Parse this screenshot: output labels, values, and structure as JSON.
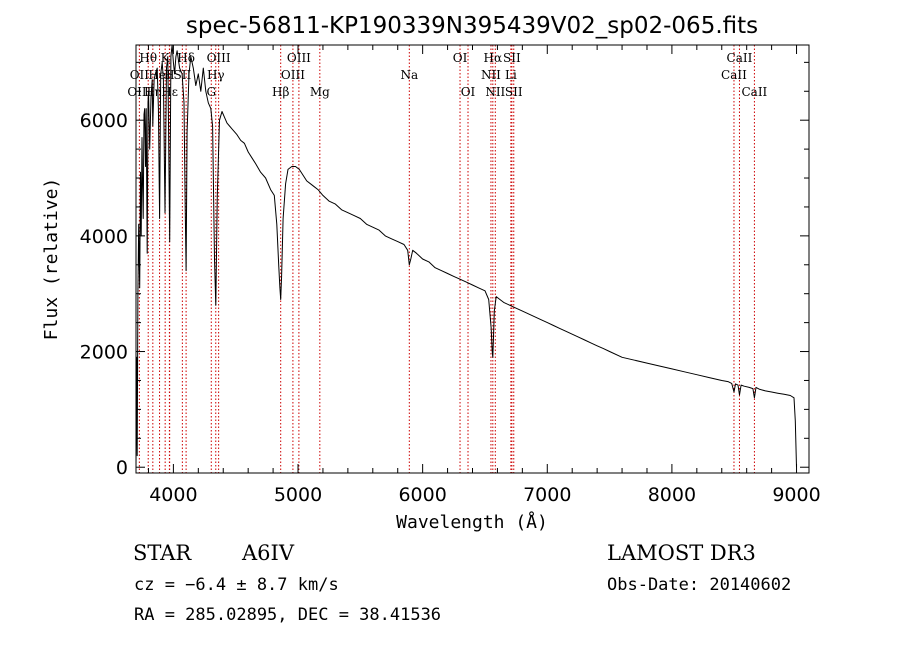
{
  "chart_data": {
    "type": "line",
    "title": "spec-56811-KP190339N395439V02_sp02-065.fits",
    "xlabel": "Wavelength (Å)",
    "ylabel": "Flux (relative)",
    "xlim": [
      3700,
      9100
    ],
    "ylim": [
      -100,
      7300
    ],
    "xticks": [
      4000,
      5000,
      6000,
      7000,
      8000,
      9000
    ],
    "xtick_labels": [
      "4000",
      "5000",
      "6000",
      "7000",
      "8000",
      "9000"
    ],
    "yticks": [
      0,
      2000,
      4000,
      6000
    ],
    "ytick_labels": [
      "0",
      "2000",
      "4000",
      "6000"
    ],
    "grid": false,
    "line_color": "#000000",
    "marker_color": "#cc0000",
    "series": [
      {
        "name": "spectrum",
        "x": [
          3700,
          3705,
          3710,
          3715,
          3722,
          3730,
          3736,
          3742,
          3748,
          3752,
          3758,
          3764,
          3770,
          3776,
          3782,
          3790,
          3796,
          3800,
          3810,
          3820,
          3830,
          3835,
          3845,
          3855,
          3870,
          3880,
          3889,
          3898,
          3910,
          3920,
          3933,
          3945,
          3955,
          3962,
          3970,
          3980,
          3990,
          4000,
          4010,
          4020,
          4030,
          4050,
          4070,
          4085,
          4095,
          4102,
          4110,
          4125,
          4140,
          4160,
          4180,
          4200,
          4220,
          4240,
          4260,
          4280,
          4300,
          4315,
          4330,
          4340,
          4352,
          4370,
          4390,
          4410,
          4430,
          4450,
          4470,
          4490,
          4510,
          4540,
          4570,
          4600,
          4630,
          4660,
          4700,
          4740,
          4780,
          4810,
          4830,
          4845,
          4855,
          4861,
          4868,
          4880,
          4900,
          4920,
          4950,
          4980,
          5010,
          5040,
          5070,
          5100,
          5130,
          5160,
          5200,
          5250,
          5300,
          5350,
          5400,
          5450,
          5500,
          5550,
          5600,
          5650,
          5700,
          5750,
          5800,
          5850,
          5880,
          5893,
          5905,
          5920,
          5950,
          6000,
          6050,
          6100,
          6150,
          6200,
          6250,
          6300,
          6350,
          6400,
          6450,
          6500,
          6530,
          6550,
          6558,
          6563,
          6568,
          6575,
          6590,
          6620,
          6650,
          6700,
          6750,
          6800,
          6850,
          6900,
          6950,
          7000,
          7050,
          7100,
          7150,
          7200,
          7250,
          7300,
          7350,
          7400,
          7450,
          7500,
          7600,
          7700,
          7800,
          7900,
          8000,
          8100,
          8200,
          8300,
          8400,
          8450,
          8480,
          8498,
          8510,
          8530,
          8542,
          8555,
          8580,
          8620,
          8650,
          8662,
          8675,
          8700,
          8750,
          8800,
          8850,
          8900,
          8950,
          8980,
          8990,
          9000
        ],
        "y": [
          0,
          1900,
          200,
          3000,
          4200,
          3100,
          5100,
          4000,
          5700,
          5000,
          4300,
          6100,
          6200,
          5200,
          6200,
          3700,
          6300,
          6500,
          5500,
          6400,
          6700,
          5900,
          6700,
          6800,
          6900,
          6200,
          4300,
          6800,
          7000,
          6700,
          4400,
          6900,
          7100,
          5600,
          3900,
          7100,
          7300,
          7000,
          6800,
          7100,
          7200,
          6900,
          6800,
          6300,
          4500,
          3400,
          5800,
          6800,
          7100,
          6900,
          6600,
          6800,
          6500,
          6900,
          6500,
          6300,
          6200,
          5900,
          3600,
          2800,
          4700,
          6000,
          6150,
          6050,
          5950,
          5900,
          5850,
          5800,
          5750,
          5650,
          5600,
          5450,
          5350,
          5250,
          5100,
          5000,
          4800,
          4700,
          4200,
          3500,
          3100,
          2900,
          3300,
          4300,
          4900,
          5150,
          5200,
          5200,
          5150,
          5050,
          4950,
          4900,
          4850,
          4800,
          4700,
          4600,
          4550,
          4450,
          4400,
          4350,
          4300,
          4200,
          4150,
          4100,
          4000,
          3950,
          3900,
          3850,
          3750,
          3500,
          3600,
          3750,
          3700,
          3600,
          3550,
          3450,
          3400,
          3350,
          3300,
          3250,
          3200,
          3150,
          3100,
          3050,
          2900,
          2400,
          2000,
          1900,
          2200,
          2700,
          2950,
          2900,
          2850,
          2800,
          2750,
          2700,
          2650,
          2600,
          2550,
          2500,
          2450,
          2400,
          2350,
          2300,
          2250,
          2200,
          2150,
          2100,
          2050,
          2000,
          1900,
          1850,
          1800,
          1750,
          1700,
          1650,
          1600,
          1550,
          1500,
          1480,
          1450,
          1300,
          1440,
          1420,
          1250,
          1420,
          1400,
          1380,
          1360,
          1200,
          1380,
          1350,
          1320,
          1300,
          1280,
          1260,
          1240,
          1200,
          800,
          0
        ]
      }
    ],
    "annotations": [
      {
        "label": "Hθ",
        "x": 3798,
        "row": 1
      },
      {
        "label": "OII",
        "x": 3727,
        "row": 2
      },
      {
        "label": "OIII",
        "x": 3727,
        "row": 3
      },
      {
        "label": "Hη",
        "x": 3835,
        "row": 3
      },
      {
        "label": "K",
        "x": 3934,
        "row": 1
      },
      {
        "label": "HeI",
        "x": 3889,
        "row": 2
      },
      {
        "label": "Hε",
        "x": 3970,
        "row": 3
      },
      {
        "label": "H",
        "x": 3968,
        "row": 2
      },
      {
        "label": "Hδ",
        "x": 4102,
        "row": 1
      },
      {
        "label": "SII",
        "x": 4072,
        "row": 2
      },
      {
        "label": "OIII",
        "x": 4363,
        "row": 1
      },
      {
        "label": "Hγ",
        "x": 4340,
        "row": 2
      },
      {
        "label": "G",
        "x": 4304,
        "row": 3
      },
      {
        "label": "OIII",
        "x": 5007,
        "row": 1
      },
      {
        "label": "OIII",
        "x": 4959,
        "row": 2
      },
      {
        "label": "Hβ",
        "x": 4861,
        "row": 3
      },
      {
        "label": "Mg",
        "x": 5175,
        "row": 3
      },
      {
        "label": "Na",
        "x": 5893,
        "row": 2
      },
      {
        "label": "OI",
        "x": 6300,
        "row": 1
      },
      {
        "label": "OI",
        "x": 6364,
        "row": 3
      },
      {
        "label": "Hα",
        "x": 6563,
        "row": 1
      },
      {
        "label": "SII",
        "x": 6716,
        "row": 1
      },
      {
        "label": "NII",
        "x": 6548,
        "row": 2
      },
      {
        "label": "Li",
        "x": 6708,
        "row": 2
      },
      {
        "label": "NII",
        "x": 6583,
        "row": 3
      },
      {
        "label": "SII",
        "x": 6731,
        "row": 3
      },
      {
        "label": "CaII",
        "x": 8542,
        "row": 1
      },
      {
        "label": "CaII",
        "x": 8498,
        "row": 2
      },
      {
        "label": "CaII",
        "x": 8662,
        "row": 3
      }
    ],
    "line_markers": [
      3727,
      3798,
      3835,
      3889,
      3934,
      3968,
      3970,
      4072,
      4102,
      4304,
      4340,
      4363,
      4861,
      4959,
      5007,
      5175,
      5893,
      6300,
      6364,
      6548,
      6563,
      6583,
      6708,
      6716,
      6731,
      8498,
      8542,
      8662
    ]
  },
  "info": {
    "object_type": "STAR",
    "subclass": "A6IV",
    "survey": "LAMOST DR3",
    "cz": "cz = −6.4 ± 8.7 km/s",
    "obs_date": "Obs-Date: 20140602",
    "coords": "RA = 285.02895, DEC =  38.41536"
  }
}
